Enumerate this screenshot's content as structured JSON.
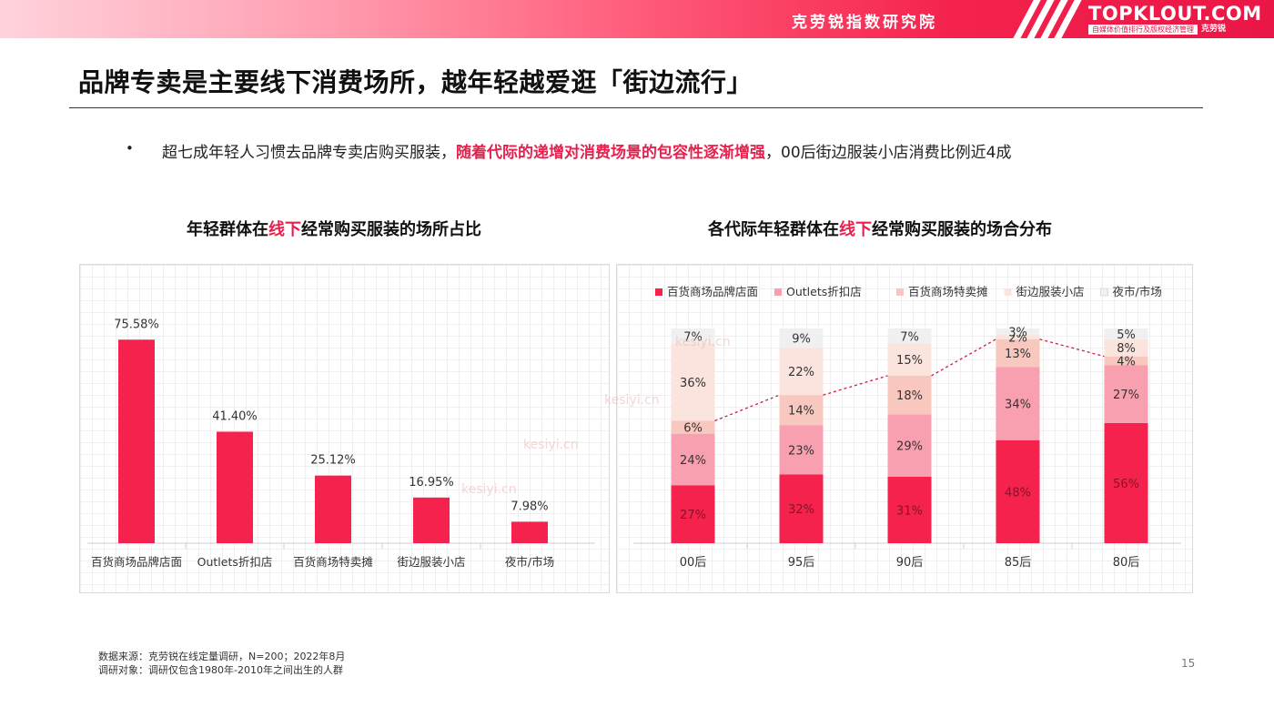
{
  "header": {
    "org_name": "克劳锐指数研究院",
    "logo_text": "TOPKLOUT.COM",
    "logo_tagline": "自媒体价值排行及版权经济管理",
    "logo_brand": "克劳锐"
  },
  "page_title": "品牌专卖是主要线下消费场所，越年轻越爱逛「街边流行」",
  "bullet": {
    "marker": "•",
    "part1": "超七成年轻人习惯去品牌专卖店购买服装，",
    "highlight": "随着代际的递增对消费场景的包容性逐渐增强",
    "part2": "，00后街边服装小店消费比例近4成"
  },
  "chart1_title": {
    "pre": "年轻群体在",
    "red": "线下",
    "post": "经常购买服装的场所占比"
  },
  "chart2_title": {
    "pre": "各代际年轻群体在",
    "red": "线下",
    "post": "经常购买服装的场合分布"
  },
  "chart_data": [
    {
      "type": "bar",
      "categories": [
        "百货商场品牌店面",
        "Outlets折扣店",
        "百货商场特卖摊",
        "街边服装小店",
        "夜市/市场"
      ],
      "values": [
        75.58,
        41.4,
        25.12,
        16.95,
        7.98
      ],
      "value_labels": [
        "75.58%",
        "41.40%",
        "25.12%",
        "16.95%",
        "7.98%"
      ],
      "ylim": [
        0,
        100
      ],
      "color": "#f4224c",
      "grid": true
    },
    {
      "type": "bar",
      "stacked": true,
      "categories": [
        "00后",
        "95后",
        "90后",
        "85后",
        "80后"
      ],
      "series": [
        {
          "name": "百货商场品牌店面",
          "color": "#f4224c",
          "values": [
            27,
            32,
            31,
            48,
            56
          ],
          "labels": [
            "27%",
            "32%",
            "31%",
            "48%",
            "56%"
          ]
        },
        {
          "name": "Outlets折扣店",
          "color": "#f8a0b0",
          "values": [
            24,
            23,
            29,
            34,
            27
          ],
          "labels": [
            "24%",
            "23%",
            "29%",
            "34%",
            "27%"
          ]
        },
        {
          "name": "百货商场特卖摊",
          "color": "#f8c8bf",
          "values": [
            6,
            14,
            18,
            13,
            4
          ],
          "labels": [
            "6%",
            "14%",
            "18%",
            "13%",
            "4%"
          ]
        },
        {
          "name": "街边服装小店",
          "color": "#fbe3de",
          "values": [
            36,
            22,
            15,
            2,
            8
          ],
          "labels": [
            "36%",
            "22%",
            "15%",
            "2%",
            "8%"
          ]
        },
        {
          "name": "夜市/市场",
          "color": "#f0f0f0",
          "values": [
            7,
            9,
            7,
            3,
            5
          ],
          "labels": [
            "7%",
            "9%",
            "7%",
            "3%",
            "5%"
          ]
        }
      ],
      "ylim": [
        0,
        100
      ],
      "legend": "top",
      "trend_line": "dashed connector across the top of 百货商场特卖摊 segments"
    }
  ],
  "watermark": "kesiyi.cn",
  "footer": {
    "line1": "数据来源：克劳锐在线定量调研，N=200；2022年8月",
    "line2": "调研对象：调研仅包含1980年-2010年之间出生的人群"
  },
  "page_number": "15"
}
